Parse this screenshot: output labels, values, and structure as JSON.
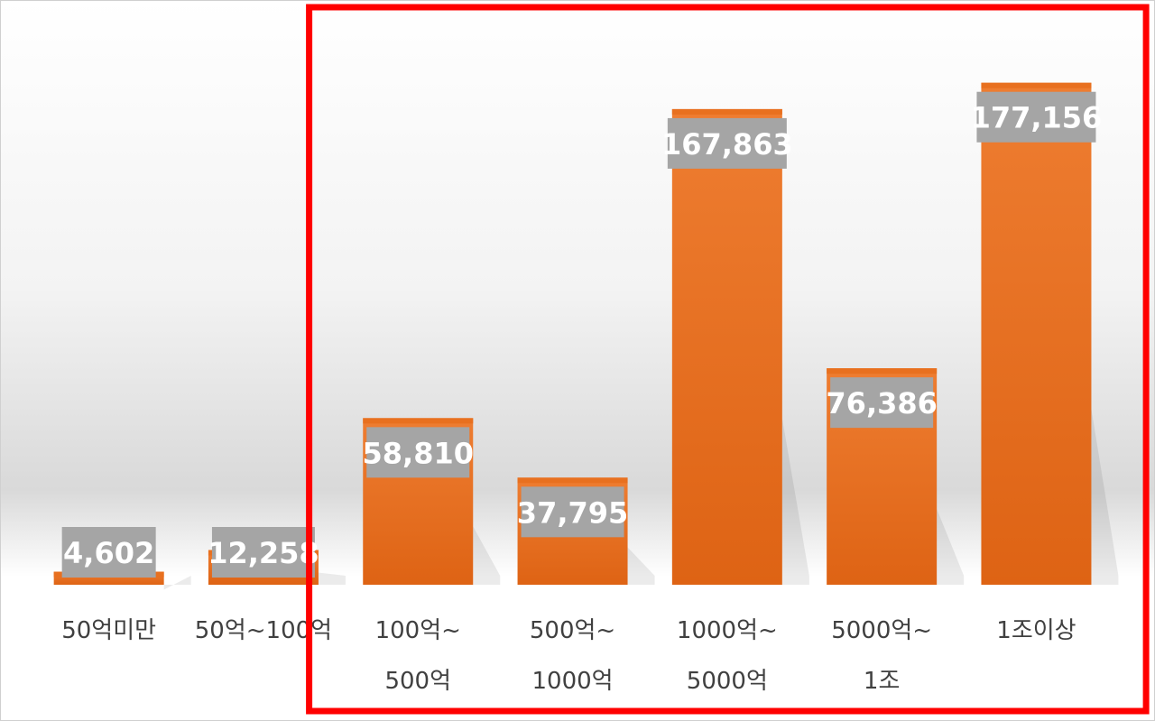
{
  "chart_data": {
    "type": "bar",
    "categories": [
      [
        "50억미만"
      ],
      [
        "50억~100억"
      ],
      [
        "100억~",
        "500억"
      ],
      [
        "500억~",
        "1000억"
      ],
      [
        "1000억~",
        "5000억"
      ],
      [
        "5000억~",
        "1조"
      ],
      [
        "1조이상"
      ]
    ],
    "values": [
      4602,
      12258,
      58810,
      37795,
      167863,
      76386,
      177156
    ],
    "value_labels": [
      "4,602",
      "12,258",
      "58,810",
      "37,795",
      "167,863",
      "76,386",
      "177,156"
    ],
    "title": "",
    "xlabel": "",
    "ylabel": "",
    "ylim": [
      0,
      200000
    ],
    "grid": false,
    "legend": "none",
    "highlight_range": [
      2,
      6
    ]
  },
  "colors": {
    "bar_top": "#ee7d31",
    "bar_bottom": "#de6314",
    "label_box": "#a5a5a5",
    "label_text": "#ffffff",
    "highlight": "#ff0000",
    "axis_text": "#404040"
  }
}
